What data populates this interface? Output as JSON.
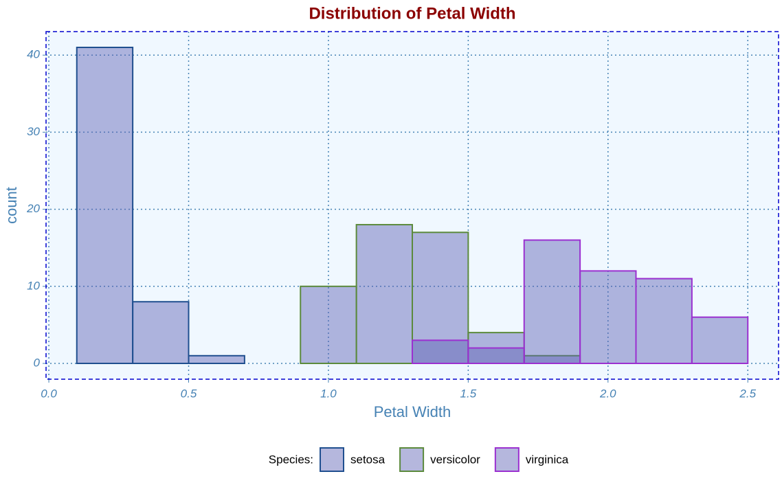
{
  "chart_data": {
    "type": "histogram",
    "title": "Distribution of Petal Width",
    "x_label": "Petal Width",
    "y_label": "count",
    "legend_title": "Species:",
    "bins": [
      0.1,
      0.3,
      0.5,
      0.7,
      0.9,
      1.1,
      1.3,
      1.5,
      1.7,
      1.9,
      2.1,
      2.3,
      2.5
    ],
    "series": [
      {
        "name": "setosa",
        "color": "#1f4f8f",
        "values": [
          41,
          8,
          1,
          0,
          0,
          0,
          0,
          0,
          0,
          0,
          0,
          0
        ]
      },
      {
        "name": "versicolor",
        "color": "#5b8a3c",
        "values": [
          0,
          0,
          0,
          0,
          10,
          18,
          17,
          4,
          1,
          0,
          0,
          0
        ]
      },
      {
        "name": "virginica",
        "color": "#9b30d0",
        "values": [
          0,
          0,
          0,
          0,
          0,
          0,
          3,
          2,
          16,
          12,
          11,
          6
        ]
      }
    ],
    "fill": "#5a60b4",
    "xlim": [
      -0.01,
      2.61
    ],
    "ylim": [
      -2.05,
      43.05
    ],
    "xticks": [
      {
        "value": 0,
        "label": "0.0"
      },
      0.5,
      {
        "value": 1,
        "label": "1.0"
      },
      1.5,
      {
        "value": 2,
        "label": "2.0"
      },
      2.5
    ],
    "yticks": [
      0,
      10,
      20,
      30,
      40
    ],
    "grid": true,
    "legend_position": "bottom"
  }
}
